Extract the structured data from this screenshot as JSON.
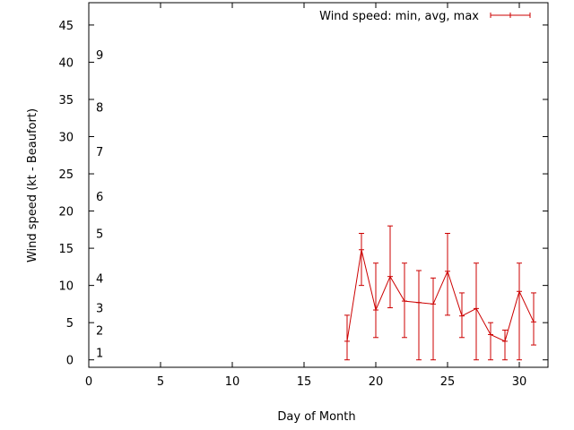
{
  "chart_data": {
    "type": "line",
    "title": "",
    "xlabel": "Day of Month",
    "ylabel": "Wind speed (kt - Beaufort)",
    "xlim": [
      0,
      32
    ],
    "ylim": [
      -1,
      48
    ],
    "xticks": [
      0,
      5,
      10,
      15,
      20,
      25,
      30
    ],
    "yticks": [
      0,
      5,
      10,
      15,
      20,
      25,
      30,
      35,
      40,
      45
    ],
    "beaufort_labels": [
      {
        "label": "1",
        "y": 1
      },
      {
        "label": "2",
        "y": 4
      },
      {
        "label": "3",
        "y": 7
      },
      {
        "label": "4",
        "y": 11
      },
      {
        "label": "5",
        "y": 17
      },
      {
        "label": "6",
        "y": 22
      },
      {
        "label": "7",
        "y": 28
      },
      {
        "label": "8",
        "y": 34
      },
      {
        "label": "9",
        "y": 41
      }
    ],
    "legend": {
      "position": "top-right",
      "label": "Wind speed: min, avg, max"
    },
    "series": [
      {
        "name": "Wind speed: min, avg, max",
        "color": "#cc0000",
        "x": [
          18,
          19,
          20,
          21,
          22,
          23,
          24,
          25,
          26,
          27,
          28,
          29,
          30,
          31
        ],
        "avg": [
          2.5,
          14.8,
          6.7,
          11.2,
          7.9,
          7.7,
          7.5,
          11.9,
          5.9,
          6.9,
          3.4,
          2.5,
          9.2,
          5.1
        ],
        "min": [
          0,
          10,
          3,
          7,
          3,
          0,
          0,
          6,
          3,
          0,
          0,
          0,
          0,
          2
        ],
        "max": [
          6,
          17,
          13,
          18,
          13,
          12,
          11,
          17,
          9,
          13,
          5,
          4,
          13,
          9
        ]
      }
    ]
  }
}
